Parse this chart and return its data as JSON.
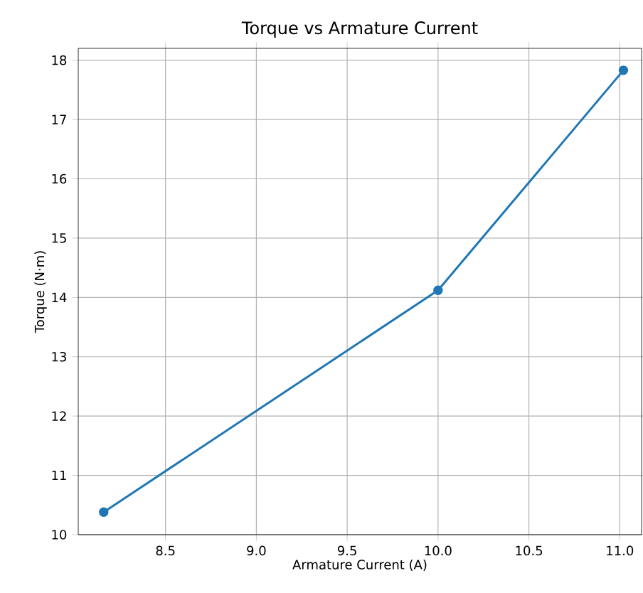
{
  "chart_data": {
    "type": "line",
    "title": "Torque vs Armature Current",
    "xlabel": "Armature Current (A)",
    "ylabel": "Torque (N·m)",
    "series": [
      {
        "color": "#1f77b4",
        "x": [
          8.16,
          10.0,
          11.02
        ],
        "values": [
          10.38,
          14.12,
          17.83
        ]
      }
    ],
    "xlim": [
      8.02,
      11.12
    ],
    "ylim": [
      10.0,
      18.2
    ],
    "xticks": [
      8.5,
      {
        "value": 9,
        "label": "9.0"
      },
      9.5,
      {
        "value": 10,
        "label": "10.0"
      },
      10.5,
      {
        "value": 11,
        "label": "11.0"
      }
    ],
    "yticks": [
      10,
      11,
      12,
      13,
      14,
      15,
      16,
      17,
      18
    ],
    "grid": true,
    "marker": "circle",
    "line_style": "solid"
  }
}
